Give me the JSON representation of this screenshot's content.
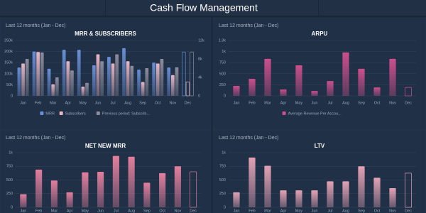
{
  "header": {
    "title": "Cash Flow Management"
  },
  "chart_data": [
    {
      "type": "bar",
      "subtitle": "Last 12 months (Jan - Dec)",
      "title": "MRR & SUBSCRIBERS",
      "categories": [
        "Jan",
        "Feb",
        "Mar",
        "Apr",
        "May",
        "Jun",
        "Jul",
        "Aug",
        "Sep",
        "Oct",
        "Nov",
        "Dec"
      ],
      "series": [
        {
          "name": "MRR",
          "color": "#6a8fd6",
          "values": [
            128000,
            200000,
            122000,
            208000,
            208000,
            138000,
            176000,
            215000,
            118000,
            150000,
            128000,
            198000
          ]
        },
        {
          "name": "Subscribers",
          "color": "#e9b8c6",
          "axis": "y2",
          "values": [
            7000,
            9500,
            2500,
            7500,
            2000,
            9000,
            7000,
            7500,
            3000,
            7000,
            4500,
            3000
          ]
        },
        {
          "name": "Previous period: Subscrib...",
          "color": "#8c8c9c",
          "axis": "y2",
          "values": [
            8000,
            9400,
            4000,
            5500,
            2800,
            7500,
            9000,
            6500,
            6000,
            8000,
            6200,
            9500
          ]
        }
      ],
      "ylim": [
        0,
        250000
      ],
      "yticks": [
        0,
        {
          "value": 50000,
          "label": "50k"
        },
        {
          "value": 100000,
          "label": "100k"
        },
        {
          "value": 150000,
          "label": "150k"
        },
        {
          "value": 200000,
          "label": "200k"
        },
        {
          "value": 250000,
          "label": "250k"
        }
      ],
      "y2lim": [
        0,
        12000
      ],
      "y2ticks": [
        0,
        {
          "value": 4000,
          "label": "4k"
        },
        {
          "value": 8000,
          "label": "8k"
        },
        {
          "value": 12000,
          "label": "12k"
        }
      ],
      "grid": true,
      "legend": "bottom"
    },
    {
      "type": "bar",
      "subtitle": "Last 12 months (Jan - Dec)",
      "title": "ARPU",
      "categories": [
        "Jan",
        "Feb",
        "Mar",
        "Apr",
        "May",
        "Jun",
        "Jul",
        "Aug",
        "Sep",
        "Oct",
        "Nov",
        "Dec"
      ],
      "series": [
        {
          "name": "Average Revenue Per Accou...",
          "color": "#cc4f8c",
          "values": [
            225,
            385,
            835,
            145,
            690,
            110,
            335,
            980,
            610,
            190,
            835,
            190
          ]
        }
      ],
      "ylim": [
        0,
        1250
      ],
      "yticks": [
        0,
        250,
        500,
        750,
        {
          "value": 1000,
          "label": "1k"
        },
        {
          "value": 1250,
          "label": "1.3k"
        }
      ],
      "grid": true,
      "legend": "bottom"
    },
    {
      "type": "bar",
      "subtitle": "Last 12 months (Jan - Dec)",
      "title": "NET NEW MRR",
      "categories": [
        "Jan",
        "Feb",
        "Mar",
        "Apr",
        "May",
        "Jun",
        "Jul",
        "Aug",
        "Sep",
        "Oct",
        "Nov",
        "Dec"
      ],
      "values": [
        240,
        690,
        490,
        275,
        640,
        650,
        940,
        925,
        450,
        625,
        750,
        650
      ],
      "color": "#e27f9d",
      "ylim": [
        0,
        1000
      ],
      "yticks": [
        0,
        250,
        500,
        750,
        {
          "value": 1000,
          "label": "1k"
        }
      ],
      "grid": true
    },
    {
      "type": "bar",
      "subtitle": "Last 12 months (Jan - Dec)",
      "title": "LTV",
      "categories": [
        "Jan",
        "Feb",
        "Mar",
        "Apr",
        "May",
        "Jun",
        "Jul",
        "Aug",
        "Sep",
        "Oct",
        "Nov",
        "Dec"
      ],
      "values": [
        275,
        910,
        760,
        310,
        310,
        310,
        475,
        475,
        750,
        540,
        350,
        625
      ],
      "color": "#e3a2b4",
      "ylim": [
        0,
        1000
      ],
      "yticks": [
        0,
        250,
        500,
        750,
        {
          "value": 1000,
          "label": "1k"
        }
      ],
      "grid": true
    }
  ]
}
